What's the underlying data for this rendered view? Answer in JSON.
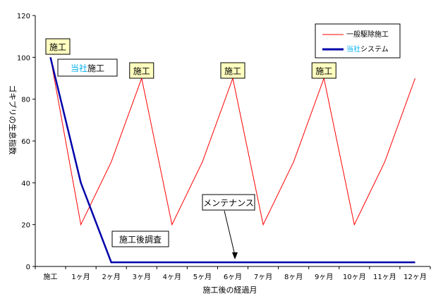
{
  "chart_data": {
    "type": "line",
    "title": "",
    "xlabel": "施工後の経過月",
    "ylabel": "ゴキブリの生息指数",
    "ylim": [
      0,
      120
    ],
    "yticks": [
      0,
      20,
      40,
      60,
      80,
      100,
      120
    ],
    "categories": [
      "施工",
      "1ヶ月",
      "2ヶ月",
      "3ヶ月",
      "4ヶ月",
      "5ヶ月",
      "6ヶ月",
      "7ヶ月",
      "8ヶ月",
      "9ヶ月",
      "10ヶ月",
      "11ヶ月",
      "12ヶ月"
    ],
    "series": [
      {
        "name": "一般駆除施工",
        "color": "#ff0000",
        "values": [
          100,
          20,
          50,
          90,
          20,
          50,
          90,
          20,
          50,
          90,
          20,
          50,
          90
        ]
      },
      {
        "name": "当社システム",
        "name_highlight": "当社",
        "name_rest": "システム",
        "color": "#0000aa",
        "values": [
          100,
          40,
          2,
          2,
          2,
          2,
          2,
          2,
          2,
          2,
          2,
          2,
          2
        ]
      }
    ],
    "legend": "top-right",
    "grid": false,
    "annotations": {
      "red_labels": [
        {
          "text": "施工",
          "index": 0
        },
        {
          "text": "施工",
          "index": 3
        },
        {
          "text": "施工",
          "index": 6
        },
        {
          "text": "施工",
          "index": 9
        }
      ],
      "blue_label": {
        "highlight": "当社",
        "rest": "施工"
      },
      "survey_label": "施工後調査",
      "maintenance_label": "メンテナンス"
    }
  }
}
